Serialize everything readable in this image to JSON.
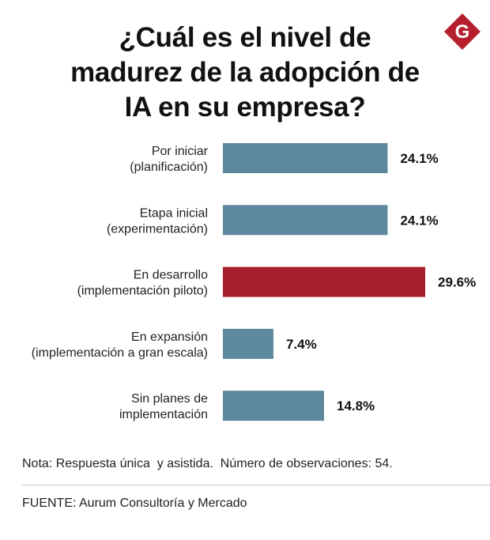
{
  "title_lines": [
    "¿Cuál es el nivel de",
    "madurez de la adopción de",
    "IA en su empresa?"
  ],
  "logo": {
    "letter": "G",
    "color": "#b51f2e"
  },
  "chart_data": {
    "type": "bar",
    "orientation": "horizontal",
    "title": "¿Cuál es el nivel de madurez de la adopción de IA en su empresa?",
    "xlabel": "",
    "ylabel": "",
    "xlim": [
      0,
      40
    ],
    "grid": false,
    "categories": [
      [
        "Por iniciar",
        "(planificación)"
      ],
      [
        "Etapa inicial",
        "(experimentación)"
      ],
      [
        "En desarrollo",
        "(implementación piloto)"
      ],
      [
        "En expansión",
        "(implementación a gran escala)"
      ],
      [
        "Sin planes de",
        "implementación"
      ]
    ],
    "values": [
      24.1,
      24.1,
      29.6,
      7.4,
      14.8
    ],
    "value_labels": [
      "24.1%",
      "24.1%",
      "29.6%",
      "7.4%",
      "14.8%"
    ],
    "highlight_index": 2,
    "colors": {
      "default": "#5d889e",
      "highlight": "#a51f2c"
    }
  },
  "note": "Nota: Respuesta única  y asistida.  Número de observaciones: 54.",
  "source": "FUENTE: Aurum Consultoría y Mercado"
}
